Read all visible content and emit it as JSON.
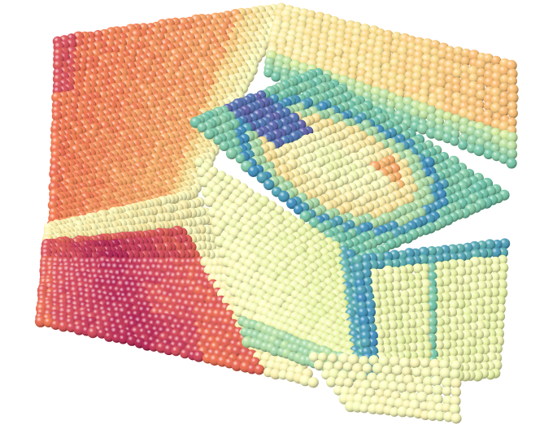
{
  "scene": {
    "kind": "point-cloud-rendering",
    "background_color": "#ffffff",
    "colormap": "Spectral",
    "colormap_stops": [
      "#9e0142",
      "#d53e4f",
      "#f46d43",
      "#fdae61",
      "#fee08b",
      "#ffffbf",
      "#e6f598",
      "#abdda4",
      "#66c2a5",
      "#3288bd",
      "#5e4fa2"
    ]
  }
}
